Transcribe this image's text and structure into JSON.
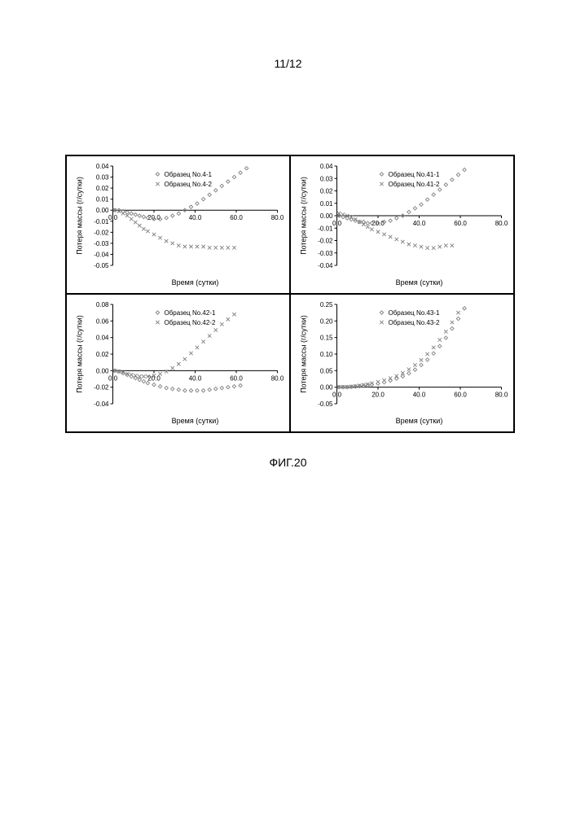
{
  "page_number": "11/12",
  "caption": "ФИГ.20",
  "shared": {
    "xlabel": "Время (сутки)",
    "ylabel": "Потеря массы (г/сутки)",
    "xlim": [
      0,
      80
    ],
    "xticks": [
      0,
      20,
      40,
      60,
      80
    ],
    "xtick_labels": [
      "0.0",
      "20.0",
      "40.0",
      "60.0",
      "80.0"
    ],
    "marker_colors": {
      "diamond": "#808080",
      "cross": "#808080"
    },
    "axis_color": "#000000",
    "label_fontsize": 9,
    "tick_fontsize": 8,
    "legend_fontsize": 8
  },
  "panels": [
    {
      "legend": [
        {
          "marker": "diamond",
          "label": "Образец No.4-1"
        },
        {
          "marker": "cross",
          "label": "Образец No.4-2"
        }
      ],
      "ylim": [
        -0.05,
        0.04
      ],
      "yticks": [
        -0.05,
        -0.04,
        -0.03,
        -0.02,
        -0.01,
        0.0,
        0.01,
        0.02,
        0.03,
        0.04
      ],
      "series": [
        {
          "marker": "diamond",
          "points": [
            [
              1,
              0
            ],
            [
              3,
              0
            ],
            [
              5,
              -0.001
            ],
            [
              7,
              -0.002
            ],
            [
              9,
              -0.003
            ],
            [
              11,
              -0.004
            ],
            [
              13,
              -0.005
            ],
            [
              15,
              -0.006
            ],
            [
              17,
              -0.007
            ],
            [
              20,
              -0.008
            ],
            [
              23,
              -0.008
            ],
            [
              26,
              -0.007
            ],
            [
              29,
              -0.005
            ],
            [
              32,
              -0.003
            ],
            [
              35,
              0
            ],
            [
              38,
              0.003
            ],
            [
              41,
              0.006
            ],
            [
              44,
              0.01
            ],
            [
              47,
              0.014
            ],
            [
              50,
              0.018
            ],
            [
              53,
              0.022
            ],
            [
              56,
              0.026
            ],
            [
              59,
              0.03
            ],
            [
              62,
              0.034
            ],
            [
              65,
              0.038
            ]
          ]
        },
        {
          "marker": "cross",
          "points": [
            [
              1,
              0
            ],
            [
              3,
              -0.001
            ],
            [
              5,
              -0.003
            ],
            [
              7,
              -0.005
            ],
            [
              9,
              -0.008
            ],
            [
              11,
              -0.011
            ],
            [
              13,
              -0.014
            ],
            [
              15,
              -0.017
            ],
            [
              17,
              -0.019
            ],
            [
              20,
              -0.022
            ],
            [
              23,
              -0.025
            ],
            [
              26,
              -0.028
            ],
            [
              29,
              -0.03
            ],
            [
              32,
              -0.032
            ],
            [
              35,
              -0.033
            ],
            [
              38,
              -0.033
            ],
            [
              41,
              -0.033
            ],
            [
              44,
              -0.033
            ],
            [
              47,
              -0.034
            ],
            [
              50,
              -0.034
            ],
            [
              53,
              -0.034
            ],
            [
              56,
              -0.034
            ],
            [
              59,
              -0.034
            ]
          ]
        }
      ]
    },
    {
      "legend": [
        {
          "marker": "diamond",
          "label": "Образец No.41-1"
        },
        {
          "marker": "cross",
          "label": "Образец No.41-2"
        }
      ],
      "ylim": [
        -0.04,
        0.04
      ],
      "yticks": [
        -0.04,
        -0.03,
        -0.02,
        -0.01,
        0.0,
        0.01,
        0.02,
        0.03,
        0.04
      ],
      "series": [
        {
          "marker": "diamond",
          "points": [
            [
              1,
              0
            ],
            [
              3,
              -0.001
            ],
            [
              5,
              -0.002
            ],
            [
              7,
              -0.003
            ],
            [
              9,
              -0.004
            ],
            [
              11,
              -0.005
            ],
            [
              13,
              -0.005
            ],
            [
              15,
              -0.006
            ],
            [
              17,
              -0.006
            ],
            [
              20,
              -0.006
            ],
            [
              23,
              -0.005
            ],
            [
              26,
              -0.004
            ],
            [
              29,
              -0.002
            ],
            [
              32,
              0
            ],
            [
              35,
              0.003
            ],
            [
              38,
              0.006
            ],
            [
              41,
              0.009
            ],
            [
              44,
              0.013
            ],
            [
              47,
              0.017
            ],
            [
              50,
              0.021
            ],
            [
              53,
              0.025
            ],
            [
              56,
              0.029
            ],
            [
              59,
              0.033
            ],
            [
              62,
              0.037
            ]
          ]
        },
        {
          "marker": "cross",
          "points": [
            [
              1,
              0.002
            ],
            [
              3,
              0.001
            ],
            [
              5,
              0
            ],
            [
              7,
              -0.001
            ],
            [
              9,
              -0.003
            ],
            [
              11,
              -0.005
            ],
            [
              13,
              -0.007
            ],
            [
              15,
              -0.009
            ],
            [
              17,
              -0.011
            ],
            [
              20,
              -0.013
            ],
            [
              23,
              -0.015
            ],
            [
              26,
              -0.017
            ],
            [
              29,
              -0.019
            ],
            [
              32,
              -0.021
            ],
            [
              35,
              -0.023
            ],
            [
              38,
              -0.024
            ],
            [
              41,
              -0.025
            ],
            [
              44,
              -0.026
            ],
            [
              47,
              -0.026
            ],
            [
              50,
              -0.025
            ],
            [
              53,
              -0.024
            ],
            [
              56,
              -0.024
            ]
          ]
        }
      ]
    },
    {
      "legend": [
        {
          "marker": "diamond",
          "label": "Образец No.42-1"
        },
        {
          "marker": "cross",
          "label": "Образец No.42-2"
        }
      ],
      "ylim": [
        -0.04,
        0.08
      ],
      "yticks": [
        -0.04,
        -0.02,
        0.0,
        0.02,
        0.04,
        0.06,
        0.08
      ],
      "series": [
        {
          "marker": "diamond",
          "points": [
            [
              1,
              0
            ],
            [
              3,
              -0.001
            ],
            [
              5,
              -0.003
            ],
            [
              7,
              -0.005
            ],
            [
              9,
              -0.007
            ],
            [
              11,
              -0.009
            ],
            [
              13,
              -0.011
            ],
            [
              15,
              -0.013
            ],
            [
              17,
              -0.015
            ],
            [
              20,
              -0.017
            ],
            [
              23,
              -0.019
            ],
            [
              26,
              -0.021
            ],
            [
              29,
              -0.022
            ],
            [
              32,
              -0.023
            ],
            [
              35,
              -0.024
            ],
            [
              38,
              -0.024
            ],
            [
              41,
              -0.024
            ],
            [
              44,
              -0.024
            ],
            [
              47,
              -0.023
            ],
            [
              50,
              -0.022
            ],
            [
              53,
              -0.021
            ],
            [
              56,
              -0.02
            ],
            [
              59,
              -0.019
            ],
            [
              62,
              -0.018
            ]
          ]
        },
        {
          "marker": "cross",
          "points": [
            [
              1,
              0
            ],
            [
              3,
              -0.001
            ],
            [
              5,
              -0.002
            ],
            [
              7,
              -0.004
            ],
            [
              9,
              -0.005
            ],
            [
              11,
              -0.006
            ],
            [
              13,
              -0.007
            ],
            [
              15,
              -0.007
            ],
            [
              17,
              -0.007
            ],
            [
              20,
              -0.006
            ],
            [
              23,
              -0.004
            ],
            [
              26,
              -0.001
            ],
            [
              29,
              0.003
            ],
            [
              32,
              0.008
            ],
            [
              35,
              0.014
            ],
            [
              38,
              0.021
            ],
            [
              41,
              0.028
            ],
            [
              44,
              0.035
            ],
            [
              47,
              0.042
            ],
            [
              50,
              0.049
            ],
            [
              53,
              0.056
            ],
            [
              56,
              0.062
            ],
            [
              59,
              0.068
            ]
          ]
        }
      ]
    },
    {
      "legend": [
        {
          "marker": "diamond",
          "label": "Образец No.43-1"
        },
        {
          "marker": "cross",
          "label": "Образец No.43-2"
        }
      ],
      "ylim": [
        -0.05,
        0.25
      ],
      "yticks": [
        -0.05,
        0.0,
        0.05,
        0.1,
        0.15,
        0.2,
        0.25
      ],
      "series": [
        {
          "marker": "diamond",
          "points": [
            [
              1,
              0
            ],
            [
              3,
              0
            ],
            [
              5,
              0
            ],
            [
              7,
              0.001
            ],
            [
              9,
              0.002
            ],
            [
              11,
              0.003
            ],
            [
              13,
              0.004
            ],
            [
              15,
              0.006
            ],
            [
              17,
              0.008
            ],
            [
              20,
              0.011
            ],
            [
              23,
              0.015
            ],
            [
              26,
              0.02
            ],
            [
              29,
              0.026
            ],
            [
              32,
              0.033
            ],
            [
              35,
              0.042
            ],
            [
              38,
              0.053
            ],
            [
              41,
              0.067
            ],
            [
              44,
              0.083
            ],
            [
              47,
              0.102
            ],
            [
              50,
              0.124
            ],
            [
              53,
              0.149
            ],
            [
              56,
              0.177
            ],
            [
              59,
              0.207
            ],
            [
              62,
              0.238
            ]
          ]
        },
        {
          "marker": "cross",
          "points": [
            [
              1,
              0.001
            ],
            [
              3,
              0.001
            ],
            [
              5,
              0.001
            ],
            [
              7,
              0.002
            ],
            [
              9,
              0.003
            ],
            [
              11,
              0.005
            ],
            [
              13,
              0.007
            ],
            [
              15,
              0.009
            ],
            [
              17,
              0.012
            ],
            [
              20,
              0.016
            ],
            [
              23,
              0.021
            ],
            [
              26,
              0.027
            ],
            [
              29,
              0.034
            ],
            [
              32,
              0.043
            ],
            [
              35,
              0.054
            ],
            [
              38,
              0.067
            ],
            [
              41,
              0.082
            ],
            [
              44,
              0.1
            ],
            [
              47,
              0.12
            ],
            [
              50,
              0.143
            ],
            [
              53,
              0.168
            ],
            [
              56,
              0.196
            ],
            [
              59,
              0.225
            ]
          ]
        }
      ]
    }
  ]
}
